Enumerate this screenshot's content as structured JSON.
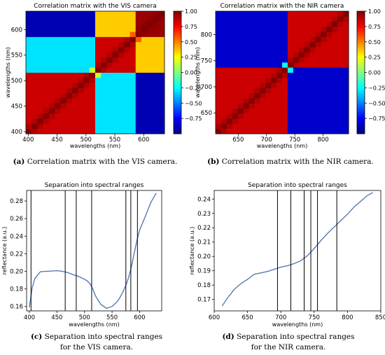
{
  "captions": {
    "a": {
      "letter": "(a)",
      "text": "Correlation matrix with the VIS camera."
    },
    "b": {
      "letter": "(b)",
      "text": "Correlation matrix with the NIR camera."
    },
    "c": {
      "letter": "(c)",
      "line1": "Separation into spectral ranges",
      "line2": "for the VIS camera."
    },
    "d": {
      "letter": "(d)",
      "line1": "Separation into spectral ranges",
      "line2": "for the NIR camera."
    }
  },
  "chart_data": [
    {
      "id": "a",
      "type": "heatmap",
      "title": "Correlation matrix with the VIS camera",
      "xlabel": "wavelengths (nm)",
      "ylabel": "wavelengths (nm)",
      "xlim": [
        396,
        636
      ],
      "ylim": [
        396,
        636
      ],
      "xticks": [
        400,
        450,
        500,
        550,
        600
      ],
      "yticks": [
        400,
        450,
        500,
        550,
        600
      ],
      "grid_size": 24,
      "value_range": [
        -1.0,
        1.0
      ],
      "colormap": "jet",
      "colorbar_ticks": [
        "1.00",
        "0.75",
        "0.50",
        "0.25",
        "0.00",
        "−0.25",
        "−0.50",
        "−0.75"
      ],
      "blocks_nm": [
        [
          396,
          512
        ],
        [
          512,
          582
        ],
        [
          582,
          636
        ]
      ],
      "block_correlation": [
        [
          0.85,
          -0.3,
          -0.9
        ],
        [
          -0.3,
          0.85,
          0.35
        ],
        [
          -0.9,
          0.35,
          0.95
        ]
      ]
    },
    {
      "id": "b",
      "type": "heatmap",
      "title": "Correlation matrix with the NIR camera",
      "xlabel": "wavelengths (nm)",
      "ylabel": "wavelengths (nm)",
      "xlim": [
        610,
        845
      ],
      "ylim": [
        610,
        845
      ],
      "xticks": [
        650,
        700,
        750,
        800
      ],
      "yticks": [
        650,
        700,
        750,
        800
      ],
      "grid_size": 24,
      "value_range": [
        -1.0,
        1.0
      ],
      "colormap": "jet",
      "colorbar_ticks": [
        "1.00",
        "0.75",
        "0.50",
        "0.25",
        "0.00",
        "−0.25",
        "−0.50",
        "−0.75"
      ],
      "blocks_nm": [
        [
          610,
          735
        ],
        [
          735,
          845
        ]
      ],
      "block_correlation": [
        [
          0.85,
          -0.85
        ],
        [
          -0.85,
          0.85
        ]
      ]
    },
    {
      "id": "c",
      "type": "line",
      "title": "Separation into spectral ranges",
      "xlabel": "wavelengths (nm)",
      "ylabel": "reflectance (a.u.)",
      "xlim": [
        395,
        640
      ],
      "ylim": [
        0.155,
        0.292
      ],
      "xticks": [
        400,
        450,
        500,
        550,
        600
      ],
      "yticks": [
        0.16,
        0.18,
        0.2,
        0.22,
        0.24,
        0.26,
        0.28
      ],
      "series": [
        {
          "x": [
            400,
            405,
            410,
            420,
            430,
            440,
            450,
            460,
            470,
            480,
            490,
            500,
            505,
            510,
            515,
            520,
            530,
            540,
            550,
            560,
            565,
            570,
            575,
            580,
            585,
            590,
            595,
            600,
            610,
            620,
            630
          ],
          "y": [
            0.159,
            0.181,
            0.192,
            0.1995,
            0.2,
            0.2003,
            0.2007,
            0.2,
            0.1985,
            0.196,
            0.194,
            0.191,
            0.189,
            0.186,
            0.18,
            0.172,
            0.162,
            0.158,
            0.16,
            0.166,
            0.171,
            0.177,
            0.184,
            0.193,
            0.205,
            0.22,
            0.235,
            0.247,
            0.262,
            0.278,
            0.289
          ]
        }
      ],
      "vlines": [
        403,
        465,
        485,
        513,
        575,
        584,
        596
      ]
    },
    {
      "id": "d",
      "type": "line",
      "title": "Separation into spectral ranges",
      "xlabel": "wavelengths (nm)",
      "ylabel": "reflectance (a.u.)",
      "xlim": [
        600,
        850
      ],
      "ylim": [
        0.162,
        0.246
      ],
      "xticks": [
        600,
        650,
        700,
        750,
        800,
        850
      ],
      "yticks": [
        0.17,
        0.18,
        0.19,
        0.2,
        0.21,
        0.22,
        0.23,
        0.24
      ],
      "series": [
        {
          "x": [
            612,
            620,
            630,
            640,
            650,
            660,
            670,
            680,
            690,
            700,
            710,
            720,
            730,
            740,
            750,
            760,
            770,
            780,
            790,
            800,
            810,
            820,
            830,
            838
          ],
          "y": [
            0.1655,
            0.171,
            0.177,
            0.181,
            0.184,
            0.1875,
            0.1885,
            0.1895,
            0.191,
            0.1925,
            0.1935,
            0.195,
            0.197,
            0.2005,
            0.2055,
            0.211,
            0.216,
            0.2205,
            0.225,
            0.2295,
            0.2345,
            0.2385,
            0.2425,
            0.2445
          ]
        }
      ],
      "vlines": [
        695,
        715,
        735,
        745,
        755,
        784
      ]
    }
  ]
}
